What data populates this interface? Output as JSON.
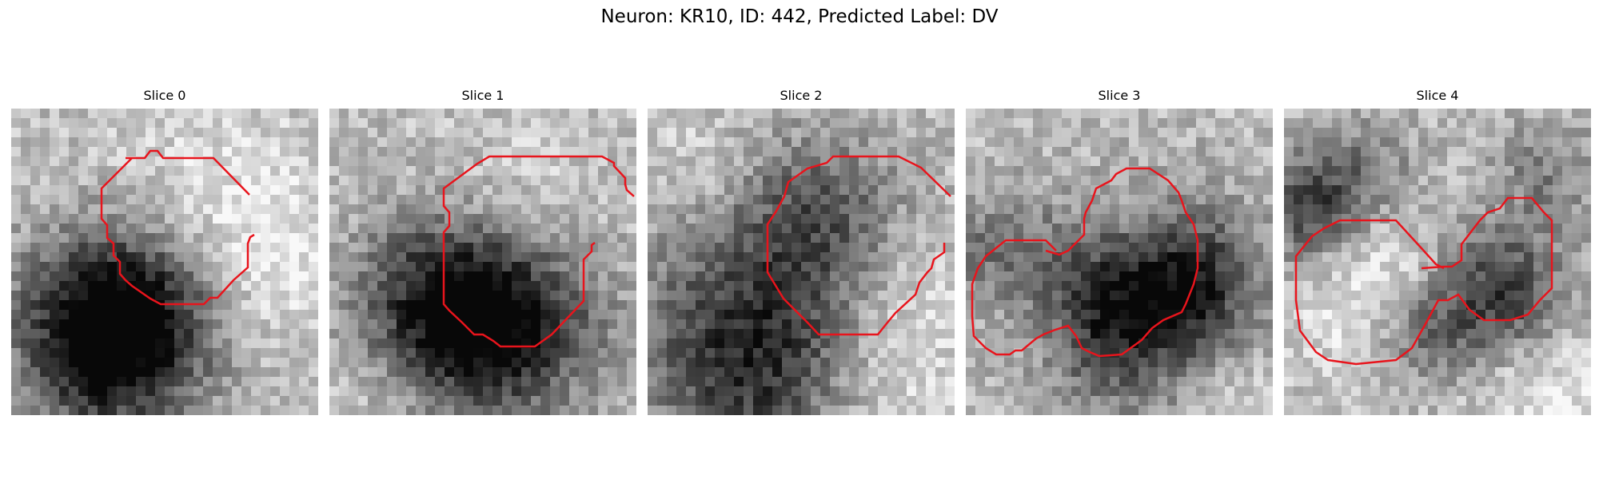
{
  "figure": {
    "title": "Neuron: KR10, ID: 442, Predicted Label: DV"
  },
  "panels": [
    {
      "title": "Slice 0"
    },
    {
      "title": "Slice 1"
    },
    {
      "title": "Slice 2"
    },
    {
      "title": "Slice 3"
    },
    {
      "title": "Slice 4"
    }
  ],
  "colors": {
    "contour": "#e8141c",
    "background": "#ffffff"
  }
}
